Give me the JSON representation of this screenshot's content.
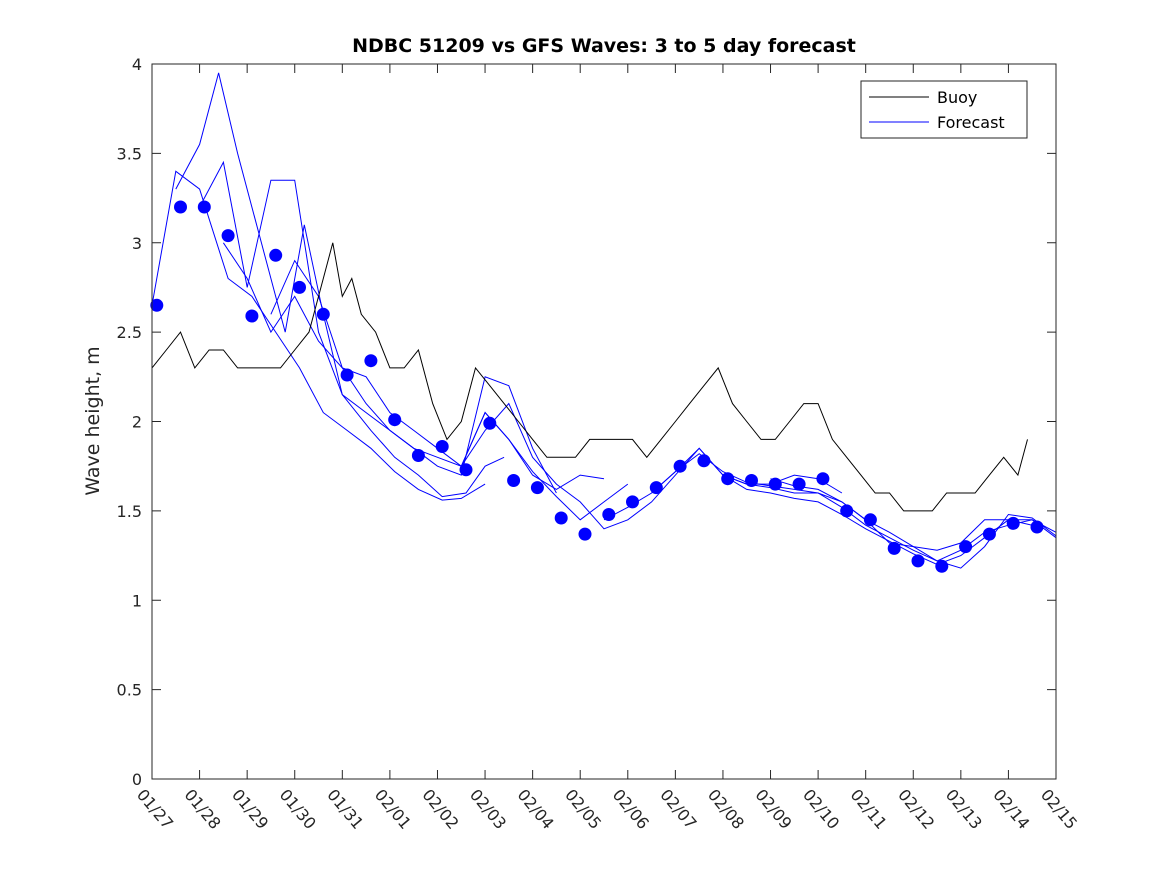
{
  "chart_data": {
    "type": "line",
    "title": "NDBC 51209 vs GFS Waves: 3 to 5 day forecast",
    "xlabel": "",
    "ylabel": "Wave height, m",
    "x_day_range": [
      0,
      19
    ],
    "ylim": [
      0,
      4
    ],
    "yticks": [
      0,
      0.5,
      1,
      1.5,
      2,
      2.5,
      3,
      3.5,
      4
    ],
    "ytick_labels": [
      "0",
      "0.5",
      "1",
      "1.5",
      "2",
      "2.5",
      "3",
      "3.5",
      "4"
    ],
    "xticks": [
      0,
      1,
      2,
      3,
      4,
      5,
      6,
      7,
      8,
      9,
      10,
      11,
      12,
      13,
      14,
      15,
      16,
      17,
      18,
      19
    ],
    "xtick_labels": [
      "01/27",
      "01/28",
      "01/29",
      "01/30",
      "01/31",
      "02/01",
      "02/02",
      "02/03",
      "02/04",
      "02/05",
      "02/06",
      "02/07",
      "02/08",
      "02/09",
      "02/10",
      "02/11",
      "02/12",
      "02/13",
      "02/14",
      "02/15"
    ],
    "legend": {
      "position": "top-right",
      "entries": [
        "Buoy",
        "Forecast"
      ]
    },
    "colors": {
      "buoy": "#000000",
      "forecast": "#0000ff",
      "axes": "#262626"
    },
    "series": [
      {
        "name": "Buoy",
        "x": [
          0,
          0.3,
          0.6,
          0.9,
          1.2,
          1.5,
          1.8,
          2.1,
          2.4,
          2.7,
          3.0,
          3.3,
          3.6,
          3.8,
          4.0,
          4.2,
          4.4,
          4.7,
          5.0,
          5.3,
          5.6,
          5.9,
          6.2,
          6.5,
          6.8,
          7.1,
          7.4,
          7.7,
          8.0,
          8.3,
          8.6,
          8.9,
          9.2,
          9.5,
          9.8,
          10.1,
          10.4,
          10.7,
          11.0,
          11.3,
          11.6,
          11.9,
          12.2,
          12.5,
          12.8,
          13.1,
          13.4,
          13.7,
          14.0,
          14.3,
          14.6,
          14.9,
          15.2,
          15.5,
          15.8,
          16.1,
          16.4,
          16.7,
          17.0,
          17.3,
          17.6,
          17.9,
          18.2,
          18.4
        ],
        "values": [
          2.3,
          2.4,
          2.5,
          2.3,
          2.4,
          2.4,
          2.3,
          2.3,
          2.3,
          2.3,
          2.4,
          2.5,
          2.8,
          3.0,
          2.7,
          2.8,
          2.6,
          2.5,
          2.3,
          2.3,
          2.4,
          2.1,
          1.9,
          2.0,
          2.3,
          2.2,
          2.1,
          2.0,
          1.9,
          1.8,
          1.8,
          1.8,
          1.9,
          1.9,
          1.9,
          1.9,
          1.8,
          1.9,
          2.0,
          2.1,
          2.2,
          2.3,
          2.1,
          2.0,
          1.9,
          1.9,
          2.0,
          2.1,
          2.1,
          1.9,
          1.8,
          1.7,
          1.6,
          1.6,
          1.5,
          1.5,
          1.5,
          1.6,
          1.6,
          1.6,
          1.7,
          1.8,
          1.7,
          1.9
        ]
      },
      {
        "name": "Forecast",
        "lines": [
          {
            "x": [
              0.0,
              0.5,
              1.0,
              1.6,
              2.1,
              2.6,
              3.1,
              3.6,
              4.1,
              4.6,
              5.1,
              5.6,
              6.1,
              6.5,
              7.0
            ],
            "values": [
              2.65,
              3.4,
              3.3,
              2.8,
              2.7,
              2.5,
              2.3,
              2.05,
              1.95,
              1.85,
              1.72,
              1.62,
              1.56,
              1.57,
              1.65
            ]
          },
          {
            "x": [
              0.5,
              1.0,
              1.4,
              1.8,
              2.3,
              2.8,
              3.2,
              3.6,
              4.0,
              4.6,
              5.1,
              5.6,
              6.1,
              6.6,
              7.0,
              7.4
            ],
            "values": [
              3.3,
              3.55,
              3.95,
              3.5,
              3.0,
              2.5,
              3.1,
              2.6,
              2.15,
              1.95,
              1.8,
              1.7,
              1.58,
              1.6,
              1.75,
              1.8
            ]
          },
          {
            "x": [
              1.0,
              1.5,
              2.0,
              2.5,
              3.0,
              3.5,
              4.0,
              4.5,
              5.0,
              5.5,
              6.0,
              6.5,
              7.0,
              7.5,
              8.0,
              8.5
            ],
            "values": [
              3.2,
              3.45,
              2.75,
              3.35,
              3.35,
              2.5,
              2.15,
              2.05,
              1.95,
              1.85,
              1.75,
              1.7,
              2.25,
              2.2,
              1.85,
              1.6
            ]
          },
          {
            "x": [
              1.5,
              2.0,
              2.5,
              3.0,
              3.5,
              4.0,
              4.5,
              5.0,
              5.5,
              6.0,
              6.5,
              7.0,
              7.5,
              8.0,
              8.5,
              9.0,
              9.5
            ],
            "values": [
              3.0,
              2.8,
              2.5,
              2.7,
              2.45,
              2.3,
              2.25,
              2.05,
              1.95,
              1.85,
              1.75,
              2.05,
              1.9,
              1.7,
              1.62,
              1.7,
              1.68
            ]
          },
          {
            "x": [
              2.5,
              3.0,
              3.5,
              4.0,
              4.5,
              5.0,
              5.5,
              6.0,
              6.5,
              7.0,
              7.5,
              8.0,
              8.5,
              9.0,
              9.5,
              10.0
            ],
            "values": [
              2.6,
              2.9,
              2.7,
              2.3,
              2.1,
              1.95,
              1.85,
              1.8,
              1.75,
              2.05,
              1.9,
              1.72,
              1.58,
              1.45,
              1.55,
              1.65
            ]
          },
          {
            "x": [
              6.5,
              7.0,
              7.5,
              8.0,
              8.5,
              9.0,
              9.5,
              10.0,
              10.5,
              11.0,
              11.5,
              12.0,
              12.5,
              13.0,
              13.5,
              14.0,
              14.5
            ],
            "values": [
              1.75,
              1.95,
              2.1,
              1.8,
              1.65,
              1.55,
              1.4,
              1.45,
              1.55,
              1.7,
              1.85,
              1.7,
              1.65,
              1.65,
              1.7,
              1.68,
              1.6
            ]
          },
          {
            "x": [
              9.5,
              10.0,
              10.5,
              11.0,
              11.5,
              12.0,
              12.5,
              13.0,
              13.5,
              14.0,
              14.5,
              15.0,
              15.5,
              16.0,
              16.5,
              17.0,
              17.5,
              18.0,
              18.5,
              19.0
            ],
            "values": [
              1.45,
              1.52,
              1.6,
              1.72,
              1.85,
              1.7,
              1.65,
              1.63,
              1.6,
              1.6,
              1.55,
              1.45,
              1.32,
              1.3,
              1.28,
              1.32,
              1.45,
              1.45,
              1.45,
              1.38
            ]
          },
          {
            "x": [
              10.5,
              11.0,
              11.5,
              12.0,
              12.5,
              13.0,
              13.5,
              14.0,
              14.5,
              15.0,
              15.5,
              16.0,
              16.5,
              17.0,
              17.5,
              18.0,
              18.5,
              19.0
            ],
            "values": [
              1.6,
              1.72,
              1.82,
              1.72,
              1.66,
              1.64,
              1.62,
              1.6,
              1.52,
              1.42,
              1.35,
              1.28,
              1.22,
              1.28,
              1.38,
              1.42,
              1.45,
              1.35
            ]
          },
          {
            "x": [
              12.0,
              12.5,
              13.0,
              13.5,
              14.0,
              14.5,
              15.0,
              15.5,
              16.0,
              16.5,
              17.0,
              17.5,
              18.0,
              18.5
            ],
            "values": [
              1.7,
              1.62,
              1.6,
              1.57,
              1.55,
              1.48,
              1.4,
              1.33,
              1.26,
              1.2,
              1.25,
              1.35,
              1.45,
              1.42
            ]
          },
          {
            "x": [
              13.0,
              13.5,
              14.0,
              14.5,
              15.0,
              15.5,
              16.0,
              16.5,
              17.0,
              17.5,
              18.0,
              18.5,
              19.0
            ],
            "values": [
              1.68,
              1.64,
              1.62,
              1.55,
              1.45,
              1.38,
              1.3,
              1.22,
              1.18,
              1.3,
              1.48,
              1.46,
              1.36
            ]
          }
        ]
      },
      {
        "name": "Forecast markers",
        "x": [
          0.1,
          0.6,
          1.1,
          1.6,
          2.1,
          2.6,
          3.1,
          3.6,
          4.1,
          4.6,
          5.1,
          5.6,
          6.1,
          6.6,
          7.1,
          7.6,
          8.1,
          8.6,
          9.1,
          9.6,
          10.1,
          10.6,
          11.1,
          11.6,
          12.1,
          12.6,
          13.1,
          13.6,
          14.1,
          14.6,
          15.1,
          15.6,
          16.1,
          16.6,
          17.1,
          17.6,
          18.1,
          18.6
        ],
        "values": [
          2.65,
          3.2,
          3.2,
          3.04,
          2.59,
          2.93,
          2.75,
          2.6,
          2.26,
          2.34,
          2.01,
          1.81,
          1.86,
          1.73,
          1.99,
          1.67,
          1.63,
          1.46,
          1.37,
          1.48,
          1.55,
          1.63,
          1.75,
          1.78,
          1.68,
          1.67,
          1.65,
          1.65,
          1.68,
          1.5,
          1.45,
          1.29,
          1.22,
          1.19,
          1.3,
          1.37,
          1.43,
          1.41
        ]
      }
    ]
  }
}
